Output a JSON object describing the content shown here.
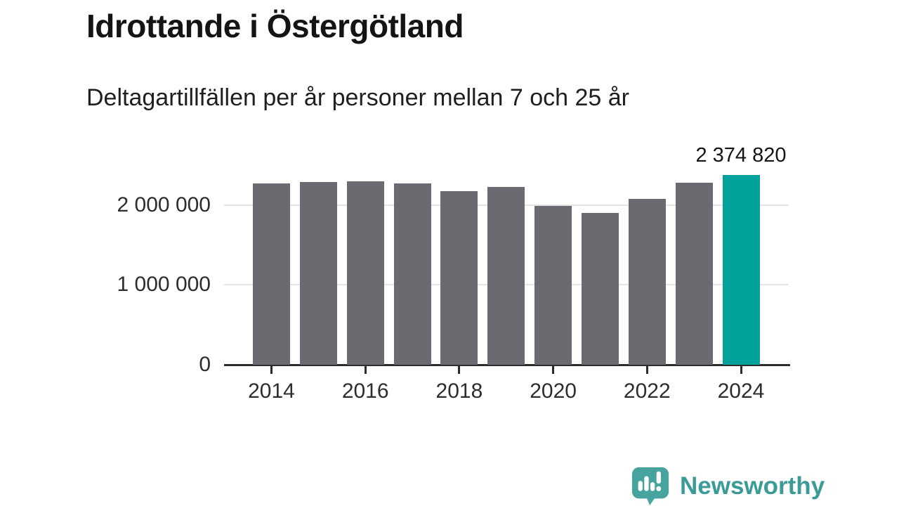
{
  "chart_data": {
    "type": "bar",
    "title": "Idrottande i Östergötland",
    "subtitle": "Deltagartillfällen per år personer mellan 7 och 25 år",
    "categories": [
      "2014",
      "2015",
      "2016",
      "2017",
      "2018",
      "2019",
      "2020",
      "2021",
      "2022",
      "2023",
      "2024"
    ],
    "values": [
      2270000,
      2290000,
      2295000,
      2265000,
      2170000,
      2220000,
      1990000,
      1900000,
      2075000,
      2275000,
      2374820
    ],
    "highlight_index": 10,
    "annotation": {
      "text": "2 374 820",
      "bar_index": 10
    },
    "xlabel": "",
    "ylabel": "",
    "ylim": [
      0,
      2400000
    ],
    "grid": "horizontal",
    "legend": "none",
    "yticks": [
      {
        "value": 0,
        "label": "0"
      },
      {
        "value": 1000000,
        "label": "1 000 000"
      },
      {
        "value": 2000000,
        "label": "2 000 000"
      }
    ],
    "xticks": [
      "2014",
      "2016",
      "2018",
      "2020",
      "2022",
      "2024"
    ],
    "colors": {
      "bar": "#6b6a70",
      "highlight": "#00a29b",
      "gridline": "#e5e5e5",
      "axis": "#2d2d2d",
      "text": "#2d2d2d"
    }
  },
  "footer": {
    "brand": "Newsworthy",
    "brand_text_color": "#3b9b96",
    "logo_bubble_color": "#46a39e"
  }
}
